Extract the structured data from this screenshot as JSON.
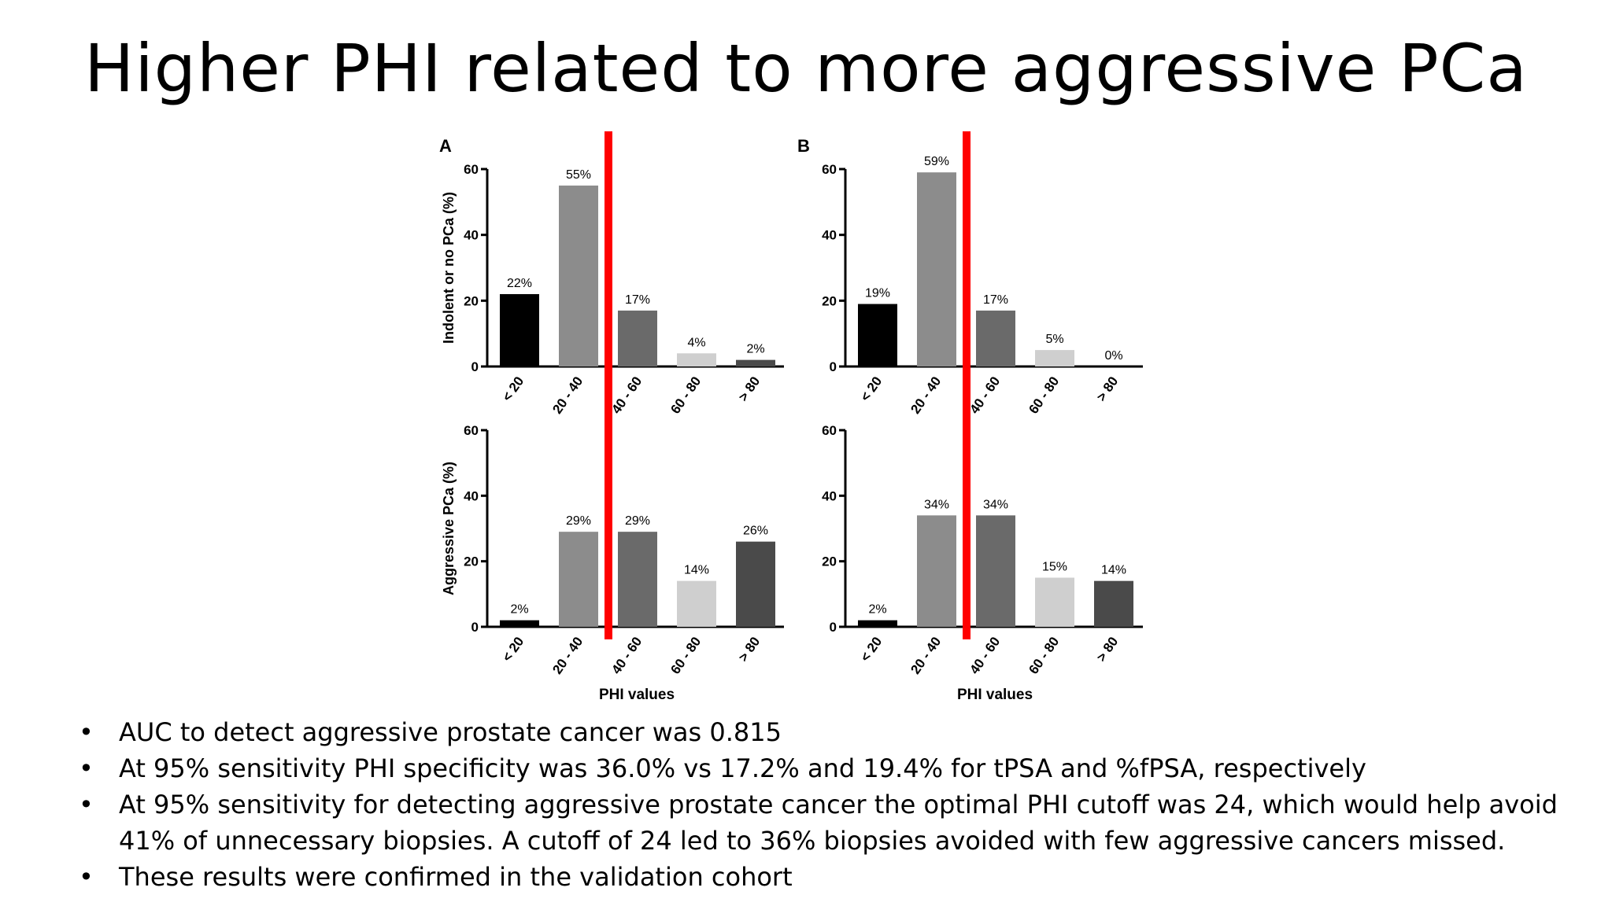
{
  "slide": {
    "title": "Higher PHI related to more aggressive PCa",
    "bullets": [
      "AUC to detect aggressive prostate cancer was 0.815",
      "At 95% sensitivity PHI specificity was 36.0% vs 17.2% and 19.4% for tPSA and %fPSA, respectively",
      "At 95% sensitivity for detecting aggressive prostate cancer the optimal PHI cutoff was 24, which would help avoid 41% of unnecessary biopsies. A cutoff of 24 led to 36% biopsies avoided with few aggressive cancers missed.",
      "These results were confirmed in the validation cohort"
    ],
    "bullet_symbol": "•"
  },
  "chart_data": [
    {
      "type": "bar",
      "panel": "A",
      "ylabel": "Indolent or no PCa (%)",
      "xlabel": "",
      "categories": [
        "< 20",
        "20 - 40",
        "40 - 60",
        "60 - 80",
        "> 80"
      ],
      "values": [
        22,
        55,
        17,
        4,
        2
      ],
      "value_labels": [
        "22%",
        "55%",
        "17%",
        "4%",
        "2%"
      ],
      "ylim": [
        0,
        60
      ],
      "yticks": [
        0,
        20,
        40,
        60
      ],
      "bar_colors": [
        "#000000",
        "#8c8c8c",
        "#6a6a6a",
        "#cfcfcf",
        "#4a4a4a"
      ],
      "cutoff_line": {
        "x_between": [
          "20 - 40",
          "40 - 60"
        ],
        "color": "#ff0000"
      }
    },
    {
      "type": "bar",
      "panel": "B",
      "ylabel": "",
      "xlabel": "",
      "categories": [
        "< 20",
        "20 - 40",
        "40 - 60",
        "60 - 80",
        "> 80"
      ],
      "values": [
        19,
        59,
        17,
        5,
        0
      ],
      "value_labels": [
        "19%",
        "59%",
        "17%",
        "5%",
        "0%"
      ],
      "ylim": [
        0,
        60
      ],
      "yticks": [
        0,
        20,
        40,
        60
      ],
      "bar_colors": [
        "#000000",
        "#8c8c8c",
        "#6a6a6a",
        "#cfcfcf",
        "#4a4a4a"
      ],
      "cutoff_line": {
        "x_between": [
          "20 - 40",
          "40 - 60"
        ],
        "color": "#ff0000"
      }
    },
    {
      "type": "bar",
      "panel": "",
      "ylabel": "Aggressive PCa (%)",
      "xlabel": "PHI values",
      "categories": [
        "< 20",
        "20 - 40",
        "40 - 60",
        "60 - 80",
        "> 80"
      ],
      "values": [
        2,
        29,
        29,
        14,
        26
      ],
      "value_labels": [
        "2%",
        "29%",
        "29%",
        "14%",
        "26%"
      ],
      "ylim": [
        0,
        60
      ],
      "yticks": [
        0,
        20,
        40,
        60
      ],
      "bar_colors": [
        "#000000",
        "#8c8c8c",
        "#6a6a6a",
        "#cfcfcf",
        "#4a4a4a"
      ],
      "cutoff_line": {
        "x_between": [
          "20 - 40",
          "40 - 60"
        ],
        "color": "#ff0000"
      }
    },
    {
      "type": "bar",
      "panel": "",
      "ylabel": "",
      "xlabel": "PHI values",
      "categories": [
        "< 20",
        "20 - 40",
        "40 - 60",
        "60 - 80",
        "> 80"
      ],
      "values": [
        2,
        34,
        34,
        15,
        14
      ],
      "value_labels": [
        "2%",
        "34%",
        "34%",
        "15%",
        "14%"
      ],
      "ylim": [
        0,
        60
      ],
      "yticks": [
        0,
        20,
        40,
        60
      ],
      "bar_colors": [
        "#000000",
        "#8c8c8c",
        "#6a6a6a",
        "#cfcfcf",
        "#4a4a4a"
      ],
      "cutoff_line": {
        "x_between": [
          "20 - 40",
          "40 - 60"
        ],
        "color": "#ff0000"
      }
    }
  ]
}
